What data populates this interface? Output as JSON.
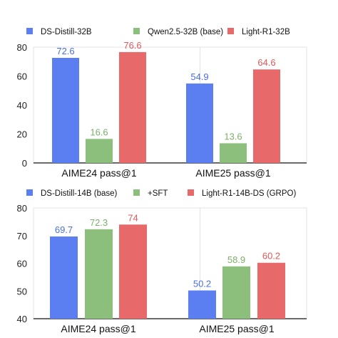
{
  "chart_data": [
    {
      "type": "bar",
      "categories": [
        "AIME24 pass@1",
        "AIME25 pass@1"
      ],
      "series": [
        {
          "name": "DS-Distill-32B",
          "values": [
            72.6,
            54.9
          ],
          "color": "#5b7ff0",
          "label_color": "#4a6fe0"
        },
        {
          "name": "Qwen2.5-32B (base)",
          "values": [
            16.6,
            13.6
          ],
          "color": "#8cbf7c",
          "label_color": "#7bb16b"
        },
        {
          "name": "Light-R1-32B",
          "values": [
            76.6,
            64.6
          ],
          "color": "#e8696a",
          "label_color": "#e0585a"
        }
      ],
      "yticks": [
        "0",
        "20",
        "40",
        "60",
        "80"
      ],
      "ylim": [
        0,
        80
      ],
      "legend": "top",
      "grid": false
    },
    {
      "type": "bar",
      "categories": [
        "AIME24 pass@1",
        "AIME25 pass@1"
      ],
      "series": [
        {
          "name": "DS-Distill-14B (base)",
          "values": [
            69.7,
            50.2
          ],
          "color": "#5b7ff0",
          "label_color": "#4a6fe0"
        },
        {
          "name": "+SFT",
          "values": [
            72.3,
            58.9
          ],
          "color": "#8cbf7c",
          "label_color": "#7bb16b"
        },
        {
          "name": "Light-R1-14B-DS (GRPO)",
          "values": [
            74,
            60.2
          ],
          "color": "#e8696a",
          "label_color": "#e0585a"
        }
      ],
      "yticks": [
        "40",
        "50",
        "60",
        "70",
        "80"
      ],
      "ylim": [
        40,
        80
      ],
      "legend": "top",
      "grid": false
    }
  ]
}
